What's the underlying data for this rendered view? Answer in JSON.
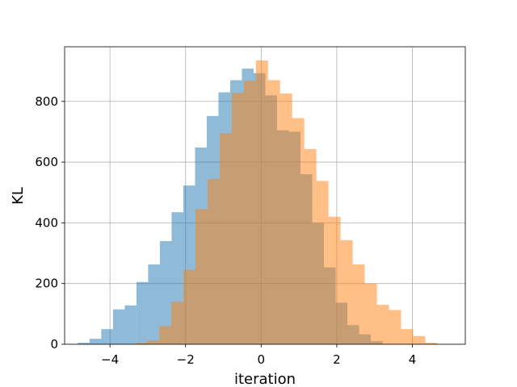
{
  "chart_data": {
    "type": "bar",
    "title": "",
    "xlabel": "iteration",
    "ylabel": "KL",
    "xlim": [
      -5.2,
      5.4
    ],
    "ylim": [
      0,
      980
    ],
    "xticks": [
      -4,
      -2,
      0,
      2,
      4
    ],
    "yticks": [
      0,
      200,
      400,
      600,
      800
    ],
    "grid": true,
    "series": [
      {
        "color": "#1f77b4",
        "opacity": 0.5,
        "bins": [
          {
            "x0": -4.85,
            "x1": -4.54,
            "y": 5
          },
          {
            "x0": -4.54,
            "x1": -4.23,
            "y": 18
          },
          {
            "x0": -4.23,
            "x1": -3.92,
            "y": 50
          },
          {
            "x0": -3.92,
            "x1": -3.61,
            "y": 115
          },
          {
            "x0": -3.61,
            "x1": -3.3,
            "y": 128
          },
          {
            "x0": -3.3,
            "x1": -2.99,
            "y": 205
          },
          {
            "x0": -2.99,
            "x1": -2.68,
            "y": 263
          },
          {
            "x0": -2.68,
            "x1": -2.37,
            "y": 340
          },
          {
            "x0": -2.37,
            "x1": -2.06,
            "y": 435
          },
          {
            "x0": -2.06,
            "x1": -1.75,
            "y": 523
          },
          {
            "x0": -1.75,
            "x1": -1.44,
            "y": 648
          },
          {
            "x0": -1.44,
            "x1": -1.13,
            "y": 752
          },
          {
            "x0": -1.13,
            "x1": -0.82,
            "y": 830
          },
          {
            "x0": -0.82,
            "x1": -0.51,
            "y": 870
          },
          {
            "x0": -0.51,
            "x1": -0.2,
            "y": 908
          },
          {
            "x0": -0.2,
            "x1": 0.11,
            "y": 893
          },
          {
            "x0": 0.11,
            "x1": 0.42,
            "y": 820
          },
          {
            "x0": 0.42,
            "x1": 0.73,
            "y": 705
          },
          {
            "x0": 0.73,
            "x1": 1.04,
            "y": 700
          },
          {
            "x0": 1.04,
            "x1": 1.35,
            "y": 560
          },
          {
            "x0": 1.35,
            "x1": 1.66,
            "y": 400
          },
          {
            "x0": 1.66,
            "x1": 1.97,
            "y": 253
          },
          {
            "x0": 1.97,
            "x1": 2.28,
            "y": 137
          },
          {
            "x0": 2.28,
            "x1": 2.59,
            "y": 63
          },
          {
            "x0": 2.59,
            "x1": 2.9,
            "y": 33
          },
          {
            "x0": 2.9,
            "x1": 3.21,
            "y": 10
          }
        ]
      },
      {
        "color": "#ff7f0e",
        "opacity": 0.5,
        "bins": [
          {
            "x0": -3.34,
            "x1": -3.02,
            "y": 5
          },
          {
            "x0": -3.02,
            "x1": -2.7,
            "y": 12
          },
          {
            "x0": -2.7,
            "x1": -2.38,
            "y": 60
          },
          {
            "x0": -2.38,
            "x1": -2.06,
            "y": 140
          },
          {
            "x0": -2.06,
            "x1": -1.74,
            "y": 245
          },
          {
            "x0": -1.74,
            "x1": -1.42,
            "y": 445
          },
          {
            "x0": -1.42,
            "x1": -1.1,
            "y": 545
          },
          {
            "x0": -1.1,
            "x1": -0.78,
            "y": 695
          },
          {
            "x0": -0.78,
            "x1": -0.46,
            "y": 828
          },
          {
            "x0": -0.46,
            "x1": -0.14,
            "y": 868
          },
          {
            "x0": -0.14,
            "x1": 0.18,
            "y": 935
          },
          {
            "x0": 0.18,
            "x1": 0.5,
            "y": 870
          },
          {
            "x0": 0.5,
            "x1": 0.82,
            "y": 826
          },
          {
            "x0": 0.82,
            "x1": 1.14,
            "y": 745
          },
          {
            "x0": 1.14,
            "x1": 1.46,
            "y": 643
          },
          {
            "x0": 1.46,
            "x1": 1.78,
            "y": 538
          },
          {
            "x0": 1.78,
            "x1": 2.1,
            "y": 420
          },
          {
            "x0": 2.1,
            "x1": 2.42,
            "y": 343
          },
          {
            "x0": 2.42,
            "x1": 2.74,
            "y": 263
          },
          {
            "x0": 2.74,
            "x1": 3.06,
            "y": 200
          },
          {
            "x0": 3.06,
            "x1": 3.38,
            "y": 130
          },
          {
            "x0": 3.38,
            "x1": 3.7,
            "y": 113
          },
          {
            "x0": 3.7,
            "x1": 4.02,
            "y": 50
          },
          {
            "x0": 4.02,
            "x1": 4.34,
            "y": 27
          },
          {
            "x0": 4.34,
            "x1": 4.66,
            "y": 5
          }
        ]
      }
    ]
  }
}
